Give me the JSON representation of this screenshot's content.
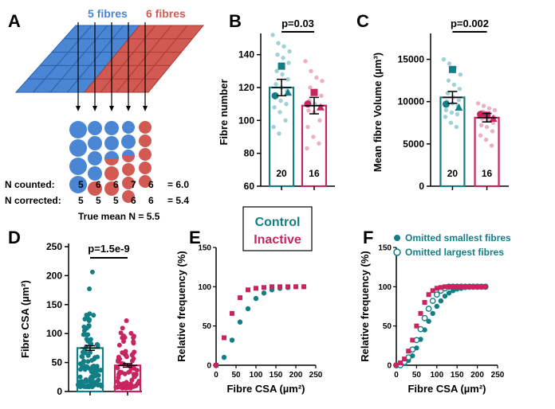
{
  "colors": {
    "control": "#127f87",
    "control_light": "#8fc9cd",
    "inactive": "#c8245f",
    "inactive_light": "#e8a2bd",
    "blue": "#4a86d4",
    "blue_grid": "#3a78c8",
    "red": "#d25a52",
    "red_grid": "#c54a44"
  },
  "panelA": {
    "letter": "A",
    "label_blue": "5 fibres",
    "label_red": "6 fibres",
    "rows": [
      {
        "label": "N counted:",
        "values": [
          "5",
          "6",
          "6",
          "7",
          "6"
        ],
        "result": "= 6.0"
      },
      {
        "label": "N corrected:",
        "values": [
          "5",
          "5",
          "5",
          "6",
          "6"
        ],
        "result": "= 5.4"
      }
    ],
    "true_mean": "True mean N  = 5.5"
  },
  "legend": {
    "control": "Control",
    "inactive": "Inactive"
  },
  "chart_data": [
    {
      "panel": "B",
      "type": "bar",
      "categories": [
        "Control",
        "Inactive"
      ],
      "values": [
        120,
        109
      ],
      "sem": [
        5,
        5
      ],
      "n": [
        "20",
        "16"
      ],
      "pvalue": "p=0.03",
      "ylabel": "Fibre number",
      "xlabel": "",
      "ylim": [
        60,
        150
      ],
      "yticks": [
        "60",
        "80",
        "100",
        "120",
        "140"
      ],
      "individual_points": {
        "Control": [
          152,
          147,
          145,
          142,
          140,
          138,
          135,
          130,
          128,
          125,
          122,
          120,
          118,
          116,
          112,
          110,
          108,
          105,
          100,
          96,
          92
        ],
        "Inactive": [
          136,
          130,
          126,
          124,
          120,
          118,
          115,
          112,
          110,
          108,
          106,
          105,
          100,
          96,
          90,
          86,
          83
        ]
      },
      "animal_means": {
        "Control": [
          133,
          115,
          117
        ],
        "Inactive": [
          117,
          110,
          108
        ]
      }
    },
    {
      "panel": "C",
      "type": "bar",
      "categories": [
        "Control",
        "Inactive"
      ],
      "values": [
        10500,
        8100
      ],
      "sem": [
        700,
        500
      ],
      "n": [
        "20",
        "16"
      ],
      "pvalue": "p=0.002",
      "ylabel": "Mean fibre Volume (µm³)",
      "xlabel": "",
      "ylim": [
        0,
        17500
      ],
      "yticks": [
        "0",
        "5000",
        "10000",
        "15000"
      ],
      "individual_points": {
        "Control": [
          15000,
          14500,
          14000,
          13200,
          12500,
          12000,
          11500,
          11000,
          10500,
          10200,
          10000,
          9800,
          9500,
          9000,
          8700,
          8500,
          8200,
          7500,
          7000
        ],
        "Inactive": [
          9800,
          9500,
          9200,
          9000,
          8800,
          8500,
          8200,
          8000,
          7800,
          7500,
          7200,
          7000,
          6500,
          6000,
          5500,
          4800
        ]
      },
      "animal_means": {
        "Control": [
          13800,
          9700,
          9300
        ],
        "Inactive": [
          8400,
          8500,
          8000
        ]
      }
    },
    {
      "panel": "D",
      "type": "bar",
      "categories": [
        "Control",
        "Inactive"
      ],
      "values": [
        75,
        45
      ],
      "sem": [
        4,
        3
      ],
      "pvalue": "p=1.5e-9",
      "ylabel": "Fibre CSA (µm²)",
      "xlabel": "",
      "ylim": [
        0,
        250
      ],
      "yticks": [
        "0",
        "50",
        "100",
        "150",
        "200",
        "250"
      ]
    },
    {
      "panel": "E",
      "type": "scatter",
      "xlabel": "Fibre CSA (µm²)",
      "ylabel": "Relative frequency (%)",
      "xlim": [
        0,
        250
      ],
      "ylim": [
        0,
        150
      ],
      "xticks": [
        "0",
        "50",
        "100",
        "150",
        "200",
        "250"
      ],
      "yticks": [
        "0",
        "50",
        "100",
        "150"
      ],
      "series": [
        {
          "name": "Control",
          "x": [
            0,
            20,
            40,
            60,
            80,
            100,
            120,
            140,
            160,
            180,
            200,
            220
          ],
          "y": [
            0,
            10,
            32,
            55,
            72,
            85,
            92,
            96,
            98,
            99,
            100,
            100
          ]
        },
        {
          "name": "Inactive",
          "x": [
            0,
            20,
            40,
            60,
            80,
            100,
            120,
            140,
            160,
            180,
            200,
            220
          ],
          "y": [
            0,
            35,
            66,
            86,
            96,
            98,
            99,
            100,
            100,
            100,
            100,
            100
          ]
        }
      ]
    },
    {
      "panel": "F",
      "type": "scatter",
      "xlabel": "Fibre CSA (µm²)",
      "ylabel": "Relative frequency (%)",
      "xlim": [
        0,
        250
      ],
      "ylim": [
        0,
        150
      ],
      "xticks": [
        "0",
        "50",
        "100",
        "150",
        "200",
        "250"
      ],
      "yticks": [
        "0",
        "50",
        "100",
        "150"
      ],
      "legend": [
        "Omitted smallest fibres",
        "Omitted largest fibres"
      ],
      "series": [
        {
          "name": "Control omitted smallest",
          "group": "Control",
          "marker": "filled-circle",
          "x": [
            0,
            10,
            20,
            30,
            40,
            50,
            60,
            70,
            80,
            90,
            100,
            110,
            120,
            130,
            140,
            150,
            160,
            170,
            180,
            190,
            200,
            210,
            220
          ],
          "y": [
            0,
            0,
            2,
            6,
            12,
            22,
            33,
            45,
            56,
            66,
            75,
            82,
            88,
            92,
            95,
            97,
            98,
            99,
            100,
            100,
            100,
            100,
            100
          ]
        },
        {
          "name": "Control omitted largest",
          "group": "Control",
          "marker": "open-circle",
          "x": [
            0,
            10,
            20,
            30,
            40,
            50,
            60,
            70,
            80,
            90,
            100,
            110,
            120,
            130,
            140,
            150,
            160,
            170,
            180,
            190,
            200,
            210,
            220
          ],
          "y": [
            0,
            0,
            4,
            10,
            20,
            32,
            46,
            60,
            72,
            82,
            90,
            95,
            98,
            100,
            100,
            100,
            100,
            100,
            100,
            100,
            100,
            100,
            100
          ]
        },
        {
          "name": "Inactive",
          "group": "Inactive",
          "marker": "square",
          "x": [
            0,
            10,
            20,
            30,
            40,
            50,
            60,
            70,
            80,
            90,
            100,
            110,
            120,
            130,
            140,
            150,
            160,
            170,
            180,
            190,
            200,
            210,
            220
          ],
          "y": [
            0,
            3,
            8,
            18,
            32,
            50,
            66,
            80,
            90,
            95,
            98,
            99,
            100,
            100,
            100,
            100,
            100,
            100,
            100,
            100,
            100,
            100,
            100
          ]
        }
      ]
    }
  ]
}
